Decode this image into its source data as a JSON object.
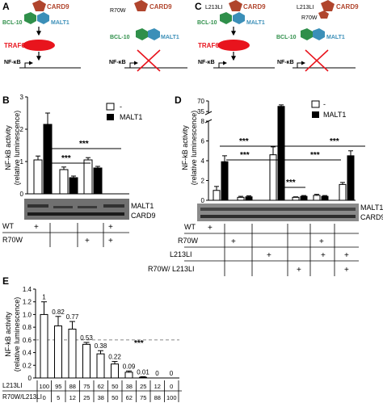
{
  "panels": {
    "A": {
      "letter": "A",
      "left": {
        "card9": "CARD9",
        "bcl10": "BCL-10",
        "malt1": "MALT1",
        "traf6": "TRAF6",
        "nfkb": "NF-κB"
      },
      "right": {
        "mutation": "R70W",
        "card9": "CARD9",
        "bcl10": "BCL-10",
        "malt1": "MALT1",
        "nfkb": "NF-κB"
      }
    },
    "C": {
      "letter": "C",
      "left": {
        "mutation": "L213LI",
        "card9": "CARD9",
        "bcl10": "BCL-10",
        "malt1": "MALT1",
        "traf6": "TRAF6",
        "nfkb": "NF-κB"
      },
      "right": {
        "mutation_top": "L213LI",
        "mutation_bottom": "R70W",
        "card9": "CARD9",
        "bcl10": "BCL-10",
        "malt1": "MALT1",
        "nfkb": "NF-κB"
      }
    },
    "B": {
      "letter": "B",
      "ylabel_line1": "NF-kB activity",
      "ylabel_line2": "(relative luminescence)",
      "legend": [
        "-",
        "MALT1"
      ],
      "sig": [
        "***",
        "***"
      ],
      "blot_labels": [
        "MALT1",
        "CARD9"
      ],
      "row_labels": [
        "WT",
        "R70W"
      ]
    },
    "D": {
      "letter": "D",
      "ylabel_line1": "NF-kB activity",
      "ylabel_line2": "(relative luminescence)",
      "legend": [
        "-",
        "MALT1"
      ],
      "sig": [
        "***",
        "***",
        "***",
        "***",
        "***"
      ],
      "blot_labels": [
        "MALT1",
        "CARD9"
      ],
      "row_labels": [
        "WT",
        "R70W",
        "L213LI",
        "R70W/ L213LI"
      ]
    },
    "E": {
      "letter": "E",
      "ylabel_line1": "NF-kB activity",
      "ylabel_line2": "(relative luminescence)",
      "sig": "***",
      "row_labels": [
        "L213LI",
        "R70W/L213LI"
      ]
    }
  },
  "chart_data": [
    {
      "id": "B",
      "type": "bar",
      "categories": [
        "WT",
        "R70W",
        "WT+R70W"
      ],
      "series": [
        {
          "name": "-",
          "values": [
            1.05,
            0.75,
            1.05
          ],
          "errors": [
            0.12,
            0.08,
            0.07
          ]
        },
        {
          "name": "MALT1",
          "values": [
            2.15,
            0.5,
            0.8
          ],
          "errors": [
            0.35,
            0.05,
            0.05
          ]
        }
      ],
      "ylim": [
        0,
        3
      ],
      "yticks": [
        "0",
        "1",
        "2",
        "3"
      ],
      "colors": {
        "-": "#ffffff",
        "MALT1": "#000000"
      },
      "legend_position": "top-right"
    },
    {
      "id": "D",
      "type": "bar",
      "categories": [
        "WT",
        "R70W",
        "L213LI",
        "R70W/L213LI",
        "R70W+L213LI",
        "L213LI+R70W/L213LI"
      ],
      "series": [
        {
          "name": "-",
          "values": [
            1.0,
            0.3,
            4.6,
            0.3,
            0.5,
            1.6
          ],
          "errors": [
            0.4,
            0.1,
            0.8,
            0.05,
            0.1,
            0.2
          ]
        },
        {
          "name": "MALT1",
          "values": [
            3.9,
            0.35,
            52,
            0.4,
            0.4,
            4.5
          ],
          "errors": [
            0.6,
            0.1,
            5,
            0.08,
            0.08,
            0.5
          ]
        }
      ],
      "ylim": [
        0,
        70
      ],
      "axis_break": [
        8,
        30
      ],
      "yticks": [
        "0",
        "2",
        "4",
        "6",
        "8",
        "35",
        "70"
      ],
      "colors": {
        "-": "#ffffff",
        "MALT1": "#000000"
      },
      "legend_position": "top-right"
    },
    {
      "id": "E",
      "type": "bar",
      "categories": [
        "100/0",
        "95/5",
        "88/12",
        "75/25",
        "62/38",
        "50/50",
        "38/62",
        "25/75",
        "12/88",
        "0/100"
      ],
      "x_rows": {
        "L213LI": [
          "100",
          "95",
          "88",
          "75",
          "62",
          "50",
          "38",
          "25",
          "12",
          "0"
        ],
        "R70W/L213LI": [
          "0",
          "5",
          "12",
          "25",
          "38",
          "50",
          "62",
          "75",
          "88",
          "100"
        ]
      },
      "values": [
        1,
        0.82,
        0.77,
        0.53,
        0.38,
        0.22,
        0.09,
        0.01,
        0,
        0
      ],
      "value_labels": [
        "1",
        "0.82",
        "0.77",
        "0.53",
        "0.38",
        "0.22",
        "0.09",
        "0.01",
        "0",
        "0"
      ],
      "errors": [
        0.2,
        0.15,
        0.12,
        0.03,
        0.05,
        0.04,
        0.02,
        0.01,
        0,
        0
      ],
      "reference_line": 0.6,
      "ylim": [
        0,
        1.4
      ],
      "yticks": [
        "0",
        "0.2",
        "0.4",
        "0.6",
        "0.8",
        "1.0",
        "1.2",
        "1.4"
      ]
    }
  ]
}
